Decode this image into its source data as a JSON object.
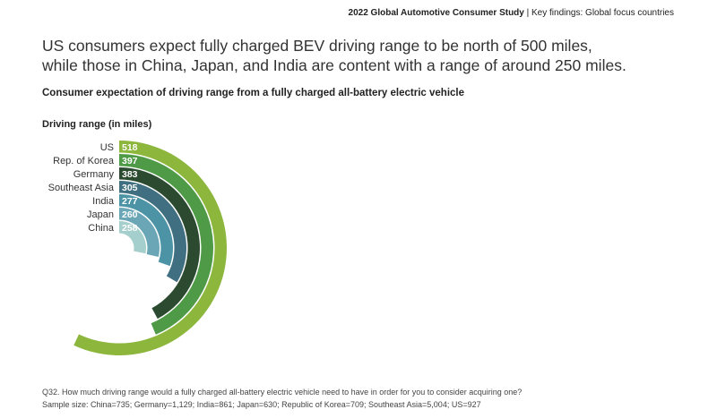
{
  "header": {
    "study": "2022 Global Automotive Consumer Study",
    "separator": " | ",
    "section": "Key findings: Global focus countries"
  },
  "headline": {
    "line1": "US consumers expect fully charged BEV driving range to be north of 500 miles,",
    "line2": "while those in China, Japan, and India are content with a range of around 250 miles."
  },
  "chart_data": {
    "type": "radial-bar",
    "title": "Consumer expectation of driving range from a fully charged all-battery electric vehicle",
    "value_axis_title": "Driving range (in miles)",
    "categories": [
      "US",
      "Rep. of Korea",
      "Germany",
      "Southeast Asia",
      "India",
      "Japan",
      "China"
    ],
    "values": [
      518,
      397,
      383,
      305,
      277,
      260,
      258
    ],
    "colors": [
      "#8cb63c",
      "#4f9a46",
      "#2c4a30",
      "#3f6f80",
      "#4c93a6",
      "#6aa6b6",
      "#a5cfcc"
    ],
    "grid": false,
    "legend": "none"
  },
  "footnote": {
    "question": "Q32. How much driving range would a fully charged all-battery electric vehicle need to have in order for you to consider acquiring one?",
    "sample": "Sample size: China=735; Germany=1,129; India=861; Japan=630; Republic of Korea=709; Southeast Asia=5,004; US=927"
  }
}
